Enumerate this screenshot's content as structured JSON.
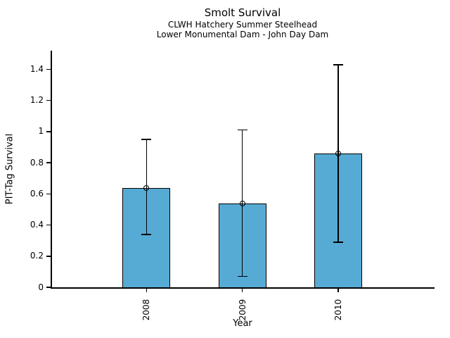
{
  "chart_data": {
    "type": "bar",
    "title": "Smolt Survival",
    "subtitle1": "CLWH Hatchery Summer Steelhead",
    "subtitle2": "Lower Monumental Dam - John Day Dam",
    "xlabel": "Year",
    "ylabel": "PIT-Tag Survival",
    "categories": [
      "2008",
      "2009",
      "2010"
    ],
    "values": [
      0.64,
      0.54,
      0.86
    ],
    "error_low": [
      0.34,
      0.07,
      0.29
    ],
    "error_high": [
      0.95,
      1.01,
      1.43
    ],
    "yticks": [
      0,
      0.2,
      0.4,
      0.6,
      0.8,
      1.0,
      1.2,
      1.4
    ],
    "ytick_labels": [
      "0",
      "0.2",
      "0.4",
      "0.6",
      "0.8",
      "1",
      "1.2",
      "1.4"
    ],
    "ylim": [
      0,
      1.52
    ],
    "grid": false,
    "legend": "none",
    "marker": "open-circle",
    "bar_color": "#56abd5",
    "bar_edge_color": "#000000",
    "error_color": "#000000",
    "axis_color": "#000000",
    "background_color": "#ffffff"
  }
}
